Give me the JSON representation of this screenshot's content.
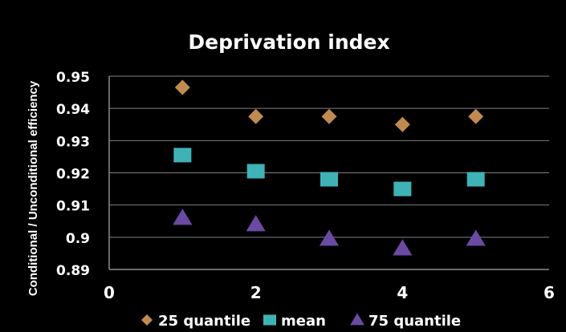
{
  "chart_data": {
    "type": "scatter",
    "title": "Deprivation index",
    "ylabel": "Conditional / Unconditional efficiency",
    "xlabel": "",
    "xlim": [
      0,
      6
    ],
    "ylim": [
      0.89,
      0.95
    ],
    "x_ticks": [
      "0",
      "2",
      "4",
      "6"
    ],
    "y_ticks": [
      "0.89",
      "0.9",
      "0.91",
      "0.92",
      "0.93",
      "0.94",
      "0.95"
    ],
    "grid": true,
    "legend_position": "bottom",
    "series": [
      {
        "name": "25 quantile",
        "marker": "diamond",
        "color": "#c08a50",
        "x": [
          1,
          2,
          3,
          4,
          5
        ],
        "y": [
          0.9465,
          0.9375,
          0.9375,
          0.935,
          0.9375
        ]
      },
      {
        "name": "mean",
        "marker": "square",
        "color": "#3fb2b6",
        "x": [
          1,
          2,
          3,
          4,
          5
        ],
        "y": [
          0.9255,
          0.9205,
          0.918,
          0.915,
          0.918
        ]
      },
      {
        "name": "75 quantile",
        "marker": "triangle",
        "color": "#6a4aa2",
        "x": [
          1,
          2,
          3,
          4,
          5
        ],
        "y": [
          0.906,
          0.904,
          0.8995,
          0.8965,
          0.8995
        ]
      }
    ]
  }
}
